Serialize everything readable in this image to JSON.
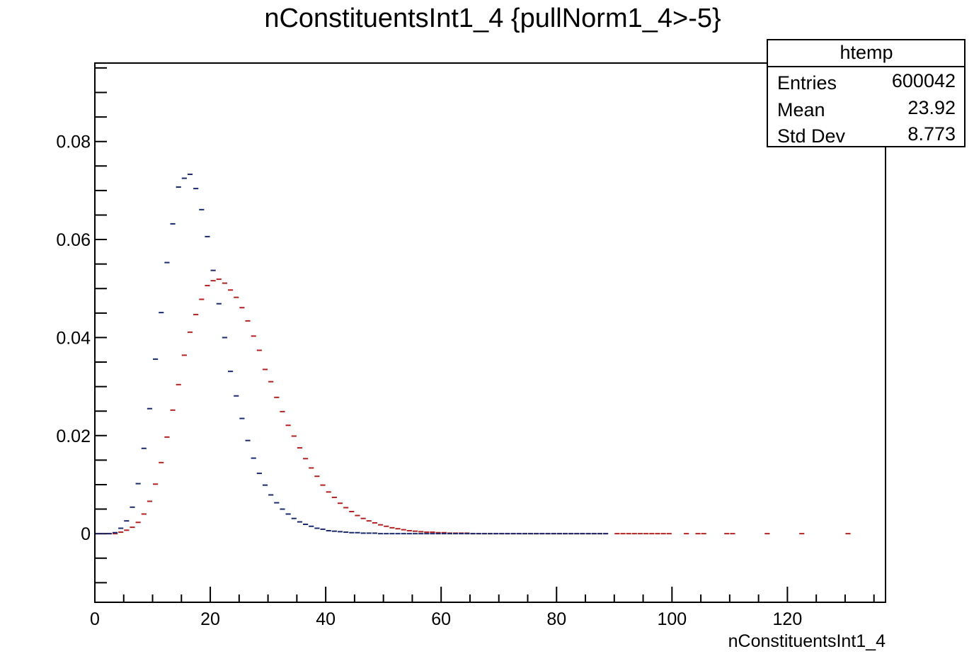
{
  "chart_data": {
    "type": "scatter",
    "title": "nConstituentsInt1_4 {pullNorm1_4>-5}",
    "xlabel": "nConstituentsInt1_4",
    "ylabel": "",
    "xlim": [
      0,
      137
    ],
    "ylim": [
      -0.014,
      0.096
    ],
    "x_ticks": [
      0,
      20,
      40,
      60,
      80,
      100,
      120
    ],
    "x_tick_labels": [
      "0",
      "20",
      "40",
      "60",
      "80",
      "100",
      "120"
    ],
    "y_ticks": [
      0,
      0.02,
      0.04,
      0.06,
      0.08
    ],
    "y_tick_labels": [
      "0",
      "0.02",
      "0.04",
      "0.06",
      "0.08"
    ],
    "grid": false,
    "stats_box": {
      "title": "htemp",
      "rows": [
        {
          "label": "Entries",
          "value": "600042"
        },
        {
          "label": "Mean",
          "value": "23.92"
        },
        {
          "label": "Std Dev",
          "value": "8.773"
        }
      ]
    },
    "series": [
      {
        "color": "#b22222",
        "x": [
          0.5,
          1.5,
          2.5,
          3.5,
          4.5,
          5.5,
          6.5,
          7.5,
          8.5,
          9.5,
          10.5,
          11.5,
          12.5,
          13.5,
          14.5,
          15.5,
          16.5,
          17.5,
          18.5,
          19.5,
          20.5,
          21.5,
          22.5,
          23.5,
          24.5,
          25.5,
          26.5,
          27.5,
          28.5,
          29.5,
          30.5,
          31.5,
          32.5,
          33.5,
          34.5,
          35.5,
          36.5,
          37.5,
          38.5,
          39.5,
          40.5,
          41.5,
          42.5,
          43.5,
          44.5,
          45.5,
          46.5,
          47.5,
          48.5,
          49.5,
          50.5,
          51.5,
          52.5,
          53.5,
          54.5,
          55.5,
          56.5,
          57.5,
          58.5,
          59.5,
          60.5,
          61.5,
          62.5,
          63.5,
          64.5,
          65.5,
          66.5,
          67.5,
          68.5,
          69.5,
          70.5,
          71.5,
          72.5,
          73.5,
          74.5,
          75.5,
          76.5,
          77.5,
          78.5,
          79.5,
          80.5,
          81.5,
          82.5,
          83.5,
          84.5,
          85.5,
          86.5,
          87.5,
          88.5,
          90.5,
          91.5,
          92.5,
          93.5,
          94.5,
          95.5,
          96.5,
          97.5,
          98.5,
          99.5,
          102.5,
          104.5,
          105.5,
          109.5,
          110.5,
          116.5,
          122.5,
          130.5
        ],
        "y": [
          0,
          0,
          0,
          0,
          0.0003,
          0.0007,
          0.0013,
          0.0023,
          0.004,
          0.0066,
          0.0101,
          0.0145,
          0.0197,
          0.0252,
          0.0304,
          0.0364,
          0.0411,
          0.0447,
          0.0478,
          0.0506,
          0.0516,
          0.0519,
          0.0511,
          0.0497,
          0.0482,
          0.0461,
          0.0434,
          0.0403,
          0.0374,
          0.0335,
          0.031,
          0.0278,
          0.0249,
          0.0221,
          0.0199,
          0.0175,
          0.0153,
          0.0134,
          0.0117,
          0.0099,
          0.0085,
          0.0074,
          0.0062,
          0.0053,
          0.0045,
          0.0037,
          0.0031,
          0.0026,
          0.0022,
          0.0018,
          0.0015,
          0.0012,
          0.001,
          0.0008,
          0.0006,
          0.0005,
          0.0004,
          0.0003,
          0.0003,
          0.0002,
          0.0002,
          0.0001,
          0.0001,
          0.0001,
          0.0001,
          0,
          0,
          0,
          0,
          0,
          0,
          0,
          0,
          0,
          0,
          0,
          0,
          0,
          0,
          0,
          0,
          0,
          0,
          0,
          0,
          0,
          0,
          0,
          0,
          0,
          0,
          0,
          0,
          0,
          0,
          0,
          0,
          0,
          0,
          0,
          0,
          0,
          0,
          0,
          0,
          0,
          0
        ]
      },
      {
        "color": "#1a2a6c",
        "x": [
          0.5,
          1.5,
          2.5,
          3.5,
          4.5,
          5.5,
          6.5,
          7.5,
          8.5,
          9.5,
          10.5,
          11.5,
          12.5,
          13.5,
          14.5,
          15.5,
          16.5,
          17.5,
          18.5,
          19.5,
          20.5,
          21.5,
          22.5,
          23.5,
          24.5,
          25.5,
          26.5,
          27.5,
          28.5,
          29.5,
          30.5,
          31.5,
          32.5,
          33.5,
          34.5,
          35.5,
          36.5,
          37.5,
          38.5,
          39.5,
          40.5,
          41.5,
          42.5,
          43.5,
          44.5,
          45.5,
          46.5,
          47.5,
          48.5,
          49.5,
          50.5,
          51.5,
          52.5,
          53.5,
          54.5,
          55.5,
          56.5,
          57.5,
          58.5,
          59.5,
          60.5,
          61.5,
          62.5,
          63.5,
          64.5,
          65.5,
          66.5,
          67.5,
          68.5,
          69.5,
          70.5,
          71.5,
          72.5,
          73.5,
          74.5,
          75.5,
          76.5,
          77.5,
          78.5,
          79.5,
          80.5,
          81.5,
          82.5,
          83.5,
          84.5,
          85.5,
          86.5,
          87.5,
          88.5
        ],
        "y": [
          0,
          0,
          0,
          0.0002,
          0.0011,
          0.0026,
          0.0054,
          0.0102,
          0.0174,
          0.0255,
          0.0356,
          0.0451,
          0.0553,
          0.0632,
          0.0707,
          0.0725,
          0.0733,
          0.0704,
          0.0661,
          0.0606,
          0.0537,
          0.0469,
          0.04,
          0.0331,
          0.0281,
          0.0235,
          0.019,
          0.0154,
          0.0123,
          0.0099,
          0.0079,
          0.0063,
          0.005,
          0.004,
          0.0031,
          0.0024,
          0.0019,
          0.0015,
          0.0011,
          0.0009,
          0.0006,
          0.0005,
          0.0004,
          0.0003,
          0.0002,
          0.0002,
          0.0001,
          0.0001,
          0.0001,
          0,
          0,
          0,
          0,
          0,
          0,
          0,
          0,
          0,
          0,
          0,
          0,
          0,
          0,
          0,
          0,
          0,
          0,
          0,
          0,
          0,
          0,
          0,
          0,
          0,
          0,
          0,
          0,
          0,
          0,
          0,
          0,
          0,
          0,
          0,
          0,
          0,
          0,
          0,
          0
        ]
      }
    ]
  }
}
